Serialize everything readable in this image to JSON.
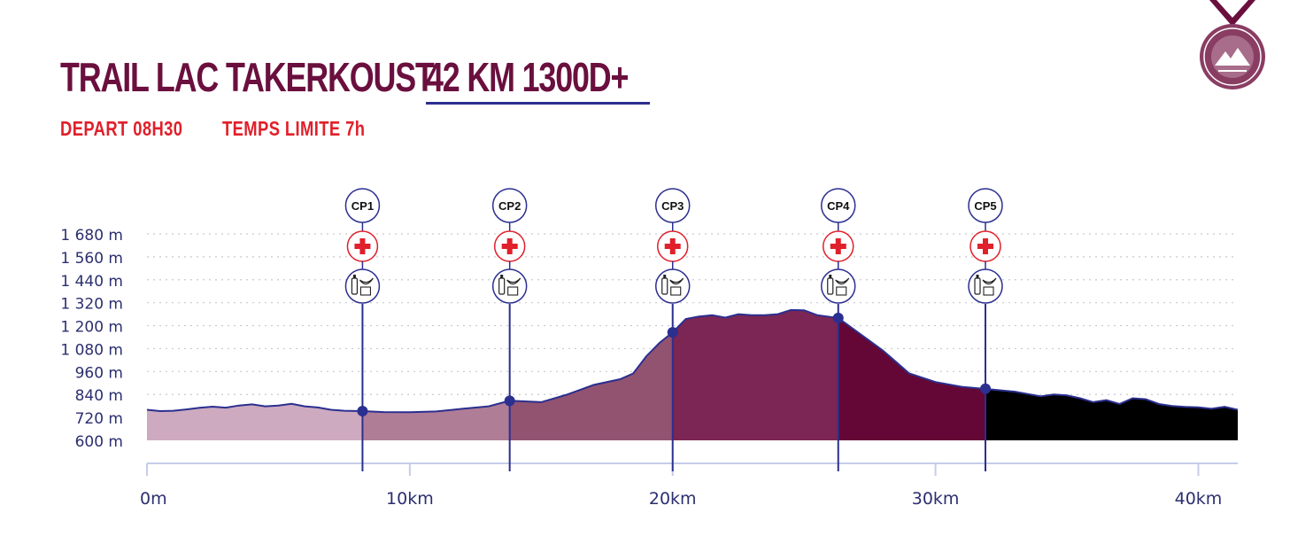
{
  "header": {
    "title_main": "TRAIL LAC TAKERKOUST",
    "title_distance": "42 KM 1300D+",
    "depart": "DEPART 08H30",
    "temps_limite": "TEMPS LIMITE 7h"
  },
  "colors": {
    "title": "#6a0f3e",
    "subtitle": "#e0202a",
    "line": "#2b2f8f",
    "segments": [
      "#cdaabf",
      "#b07d97",
      "#925371",
      "#7b2654",
      "#640736"
    ],
    "aid_cross": "#e0202a"
  },
  "icons": [
    "first-aid-icon",
    "refreshment-icon",
    "medal-logo-icon"
  ],
  "chart_data": {
    "type": "area",
    "title": "",
    "xlabel": "",
    "ylabel": "",
    "xlim": [
      0,
      41.5
    ],
    "ylim": [
      600,
      1680
    ],
    "x_ticks": [
      0,
      10,
      20,
      30,
      40
    ],
    "x_tick_labels": [
      "0m",
      "10km",
      "20km",
      "30km",
      "40km"
    ],
    "y_ticks": [
      600,
      720,
      840,
      960,
      1080,
      1200,
      1320,
      1440,
      1560,
      1680
    ],
    "y_tick_labels": [
      "600 m",
      "720 m",
      "840 m",
      "960 m",
      "1 080 m",
      "1 200 m",
      "1 320 m",
      "1 440 m",
      "1 560 m",
      "1 680 m"
    ],
    "grid": "horizontal dotted",
    "series": [
      {
        "x": [
          0,
          0.5,
          1,
          1.5,
          2,
          2.5,
          3,
          3.5,
          4,
          4.5,
          5,
          5.5,
          6,
          6.5,
          7,
          7.5,
          8.2,
          9,
          10,
          11,
          12,
          13,
          13.8,
          15,
          16,
          17,
          18,
          18.5,
          19,
          19.5,
          20,
          20.5,
          21,
          21.5,
          22,
          22.5,
          23,
          23.5,
          24,
          24.5,
          25,
          25.5,
          26.3,
          27,
          28,
          29,
          30,
          31,
          32,
          33,
          34,
          34.5,
          35,
          35.5,
          36,
          36.5,
          37,
          37.5,
          38,
          38.5,
          39,
          39.5,
          40,
          40.5,
          41,
          41.5
        ],
        "y": [
          760,
          753,
          755,
          762,
          770,
          776,
          771,
          782,
          788,
          778,
          782,
          791,
          778,
          772,
          760,
          755,
          753,
          748,
          747,
          751,
          765,
          778,
          807,
          800,
          840,
          890,
          920,
          950,
          1040,
          1110,
          1165,
          1235,
          1248,
          1255,
          1242,
          1260,
          1255,
          1255,
          1260,
          1282,
          1280,
          1255,
          1240,
          1170,
          1070,
          950,
          905,
          880,
          868,
          855,
          830,
          840,
          835,
          820,
          800,
          810,
          790,
          820,
          815,
          790,
          780,
          775,
          773,
          765,
          775,
          760
        ]
      }
    ],
    "segment_breaks": [
      0,
      8.2,
      13.8,
      20.0,
      26.3,
      31.9,
      41.5
    ],
    "checkpoints": [
      {
        "label": "CP1",
        "km": 8.2,
        "elevation": 753
      },
      {
        "label": "CP2",
        "km": 13.8,
        "elevation": 807
      },
      {
        "label": "CP3",
        "km": 20.0,
        "elevation": 1165
      },
      {
        "label": "CP4",
        "km": 26.3,
        "elevation": 1240
      },
      {
        "label": "CP5",
        "km": 31.9,
        "elevation": 870
      }
    ]
  }
}
